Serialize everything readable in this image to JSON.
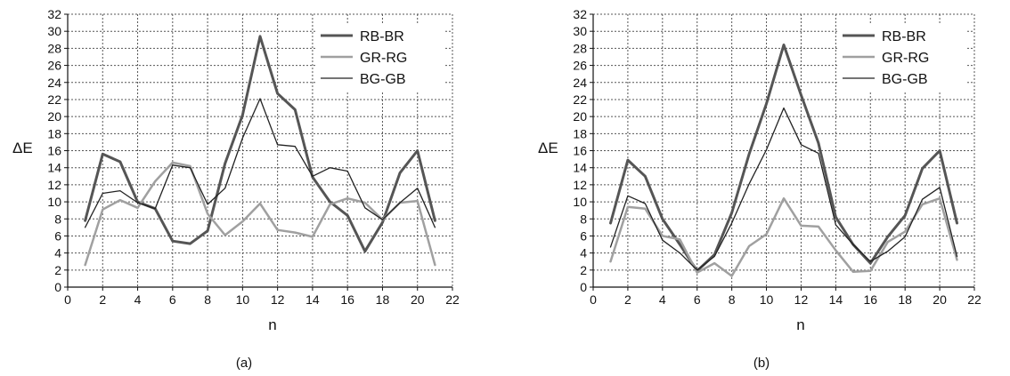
{
  "chart_data": [
    {
      "type": "line",
      "caption": "(a)",
      "xlabel": "n",
      "ylabel": "ΔE",
      "xlim": [
        0,
        22
      ],
      "ylim": [
        0,
        32
      ],
      "xticks": [
        0,
        2,
        4,
        6,
        8,
        10,
        12,
        14,
        16,
        18,
        20,
        22
      ],
      "yticks": [
        0,
        2,
        4,
        6,
        8,
        10,
        12,
        14,
        16,
        18,
        20,
        22,
        24,
        26,
        28,
        30,
        32
      ],
      "grid": true,
      "legend": "top-right",
      "x": [
        1,
        2,
        3,
        4,
        5,
        6,
        7,
        8,
        9,
        10,
        11,
        12,
        13,
        14,
        15,
        16,
        17,
        18,
        19,
        20,
        21
      ],
      "series": [
        {
          "name": "RB-BR",
          "color": "#555555",
          "values": [
            7.8,
            15.6,
            14.7,
            10.0,
            9.2,
            5.4,
            5.1,
            6.6,
            14.5,
            20.2,
            29.4,
            22.7,
            20.8,
            12.9,
            10.0,
            8.4,
            4.2,
            7.6,
            13.4,
            16.0,
            7.8
          ]
        },
        {
          "name": "GR-RG",
          "color": "#a0a0a0",
          "values": [
            2.6,
            9.1,
            10.2,
            9.3,
            12.4,
            14.6,
            14.2,
            8.6,
            6.1,
            7.7,
            9.8,
            6.7,
            6.4,
            5.9,
            9.7,
            10.4,
            9.9,
            7.9,
            9.9,
            10.1,
            2.6
          ]
        },
        {
          "name": "BG-GB",
          "color": "#222222",
          "values": [
            7.0,
            11.0,
            11.3,
            9.9,
            9.2,
            14.3,
            14.0,
            9.7,
            11.6,
            17.5,
            22.1,
            16.7,
            16.5,
            13.0,
            14.0,
            13.6,
            9.3,
            7.9,
            9.9,
            11.6,
            7.0
          ]
        }
      ]
    },
    {
      "type": "line",
      "caption": "(b)",
      "xlabel": "n",
      "ylabel": "ΔE",
      "xlim": [
        0,
        22
      ],
      "ylim": [
        0,
        32
      ],
      "xticks": [
        0,
        2,
        4,
        6,
        8,
        10,
        12,
        14,
        16,
        18,
        20,
        22
      ],
      "yticks": [
        0,
        2,
        4,
        6,
        8,
        10,
        12,
        14,
        16,
        18,
        20,
        22,
        24,
        26,
        28,
        30,
        32
      ],
      "grid": true,
      "legend": "top-right",
      "x": [
        1,
        2,
        3,
        4,
        5,
        6,
        7,
        8,
        9,
        10,
        11,
        12,
        13,
        14,
        15,
        16,
        17,
        18,
        19,
        20,
        21
      ],
      "series": [
        {
          "name": "RB-BR",
          "color": "#555555",
          "values": [
            7.5,
            14.9,
            13.0,
            8.0,
            5.0,
            1.9,
            3.8,
            8.7,
            15.6,
            21.5,
            28.4,
            22.5,
            16.9,
            8.2,
            5.0,
            2.8,
            5.9,
            8.4,
            13.9,
            16.0,
            7.5
          ]
        },
        {
          "name": "GR-RG",
          "color": "#a0a0a0",
          "values": [
            3.0,
            9.4,
            9.2,
            6.0,
            5.6,
            1.7,
            2.8,
            1.3,
            4.8,
            6.2,
            10.4,
            7.2,
            7.1,
            4.3,
            1.8,
            1.9,
            5.3,
            6.5,
            9.7,
            10.4,
            3.2
          ]
        },
        {
          "name": "BG-GB",
          "color": "#222222",
          "values": [
            4.7,
            10.7,
            9.8,
            5.5,
            4.0,
            2.0,
            3.6,
            7.5,
            12.1,
            16.1,
            21.0,
            16.7,
            15.7,
            7.3,
            5.0,
            3.0,
            4.2,
            5.9,
            10.3,
            11.7,
            3.6
          ]
        }
      ]
    }
  ]
}
